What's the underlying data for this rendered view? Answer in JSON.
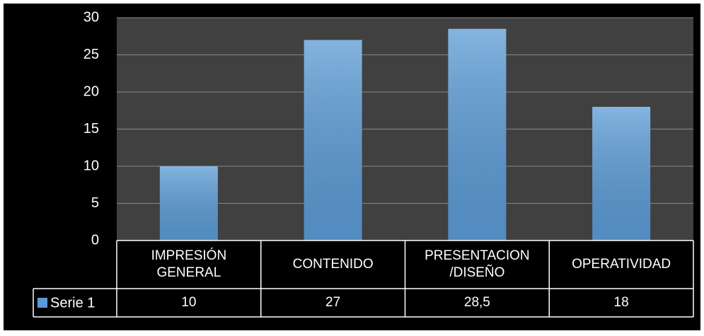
{
  "chart_data": {
    "type": "bar",
    "categories": [
      "IMPRESIÓN GENERAL",
      "CONTENIDO",
      "PRESENTACION /DISEÑO",
      "OPERATIVIDAD"
    ],
    "series": [
      {
        "name": "Serie 1",
        "color": "#5b9bd5",
        "values": [
          10,
          27,
          28.5,
          18
        ],
        "value_labels": [
          "10",
          "27",
          "28,5",
          "18"
        ]
      }
    ],
    "ylim": [
      0,
      30
    ],
    "yticks": [
      0,
      5,
      10,
      15,
      20,
      25,
      30
    ],
    "grid": true,
    "data_table": true
  }
}
